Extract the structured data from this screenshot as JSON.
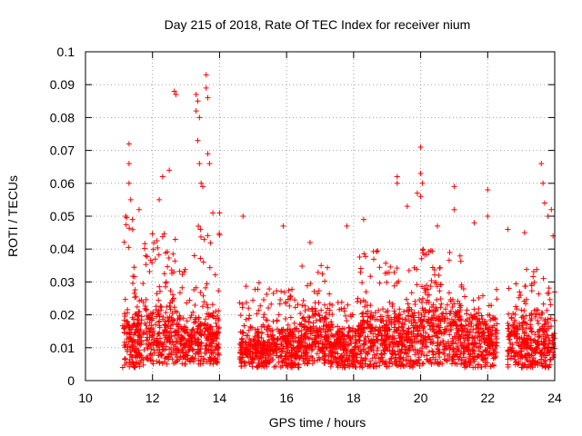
{
  "chart_data": {
    "type": "scatter",
    "title": "Day 215 of 2018, Rate Of TEC Index for receiver nium",
    "xlabel": "GPS time / hours",
    "ylabel": "ROTI / TECUs",
    "xlim": [
      10,
      24
    ],
    "ylim": [
      0,
      0.1
    ],
    "grid": true,
    "marker": "+",
    "colors": {
      "points": "#ff0000",
      "grid": "#a0a0a0",
      "frame": "#000000"
    },
    "x_ticks": [
      "10",
      "12",
      "14",
      "16",
      "18",
      "20",
      "22",
      "24"
    ],
    "y_ticks": [
      "0",
      "0.01",
      "0.02",
      "0.03",
      "0.04",
      "0.05",
      "0.06",
      "0.07",
      "0.08",
      "0.09",
      "0.1"
    ],
    "segments": [
      {
        "x": [
          11.1,
          11.8
        ],
        "y_median": 0.013,
        "y_range": [
          0.004,
          0.05
        ]
      },
      {
        "x": [
          11.8,
          12.7
        ],
        "y_median": 0.014,
        "y_range": [
          0.005,
          0.045
        ]
      },
      {
        "x": [
          12.7,
          13.2
        ],
        "y_median": 0.012,
        "y_range": [
          0.005,
          0.035
        ]
      },
      {
        "x": [
          13.2,
          14.0
        ],
        "y_median": 0.013,
        "y_range": [
          0.005,
          0.05
        ]
      },
      {
        "x": [
          14.6,
          15.3
        ],
        "y_median": 0.01,
        "y_range": [
          0.004,
          0.03
        ]
      },
      {
        "x": [
          15.3,
          16.4
        ],
        "y_median": 0.01,
        "y_range": [
          0.004,
          0.028
        ]
      },
      {
        "x": [
          16.4,
          17.3
        ],
        "y_median": 0.013,
        "y_range": [
          0.005,
          0.035
        ]
      },
      {
        "x": [
          17.3,
          18.1
        ],
        "y_median": 0.01,
        "y_range": [
          0.004,
          0.025
        ]
      },
      {
        "x": [
          18.1,
          19.0
        ],
        "y_median": 0.013,
        "y_range": [
          0.004,
          0.04
        ]
      },
      {
        "x": [
          19.0,
          20.0
        ],
        "y_median": 0.013,
        "y_range": [
          0.004,
          0.035
        ]
      },
      {
        "x": [
          20.0,
          21.2
        ],
        "y_median": 0.015,
        "y_range": [
          0.005,
          0.04
        ]
      },
      {
        "x": [
          21.2,
          22.3
        ],
        "y_median": 0.012,
        "y_range": [
          0.004,
          0.03
        ]
      },
      {
        "x": [
          22.6,
          24.0
        ],
        "y_median": 0.012,
        "y_range": [
          0.004,
          0.035
        ]
      }
    ],
    "outliers": [
      {
        "x": 11.3,
        "y": 0.072
      },
      {
        "x": 11.3,
        "y": 0.066
      },
      {
        "x": 11.3,
        "y": 0.06
      },
      {
        "x": 11.35,
        "y": 0.055
      },
      {
        "x": 11.2,
        "y": 0.05
      },
      {
        "x": 11.4,
        "y": 0.049
      },
      {
        "x": 11.6,
        "y": 0.052
      },
      {
        "x": 12.2,
        "y": 0.055
      },
      {
        "x": 12.3,
        "y": 0.062
      },
      {
        "x": 12.5,
        "y": 0.064
      },
      {
        "x": 12.65,
        "y": 0.088
      },
      {
        "x": 12.7,
        "y": 0.087
      },
      {
        "x": 13.3,
        "y": 0.087
      },
      {
        "x": 13.35,
        "y": 0.085
      },
      {
        "x": 13.3,
        "y": 0.082
      },
      {
        "x": 13.4,
        "y": 0.08
      },
      {
        "x": 13.35,
        "y": 0.073
      },
      {
        "x": 13.4,
        "y": 0.066
      },
      {
        "x": 13.45,
        "y": 0.06
      },
      {
        "x": 13.5,
        "y": 0.059
      },
      {
        "x": 13.6,
        "y": 0.093
      },
      {
        "x": 13.6,
        "y": 0.089
      },
      {
        "x": 13.65,
        "y": 0.086
      },
      {
        "x": 13.65,
        "y": 0.069
      },
      {
        "x": 13.7,
        "y": 0.066
      },
      {
        "x": 13.8,
        "y": 0.051
      },
      {
        "x": 14.0,
        "y": 0.051
      },
      {
        "x": 14.7,
        "y": 0.05
      },
      {
        "x": 15.9,
        "y": 0.047
      },
      {
        "x": 16.7,
        "y": 0.042
      },
      {
        "x": 17.8,
        "y": 0.047
      },
      {
        "x": 18.3,
        "y": 0.049
      },
      {
        "x": 19.3,
        "y": 0.06
      },
      {
        "x": 19.3,
        "y": 0.062
      },
      {
        "x": 19.6,
        "y": 0.053
      },
      {
        "x": 19.9,
        "y": 0.057
      },
      {
        "x": 20.0,
        "y": 0.071
      },
      {
        "x": 20.0,
        "y": 0.063
      },
      {
        "x": 20.05,
        "y": 0.06
      },
      {
        "x": 20.0,
        "y": 0.056
      },
      {
        "x": 20.5,
        "y": 0.047
      },
      {
        "x": 21.0,
        "y": 0.059
      },
      {
        "x": 21.0,
        "y": 0.052
      },
      {
        "x": 21.6,
        "y": 0.048
      },
      {
        "x": 22.0,
        "y": 0.058
      },
      {
        "x": 22.0,
        "y": 0.05
      },
      {
        "x": 22.6,
        "y": 0.046
      },
      {
        "x": 23.1,
        "y": 0.045
      },
      {
        "x": 23.6,
        "y": 0.066
      },
      {
        "x": 23.65,
        "y": 0.06
      },
      {
        "x": 23.7,
        "y": 0.054
      },
      {
        "x": 23.8,
        "y": 0.05
      },
      {
        "x": 23.9,
        "y": 0.052
      },
      {
        "x": 23.95,
        "y": 0.044
      }
    ]
  }
}
